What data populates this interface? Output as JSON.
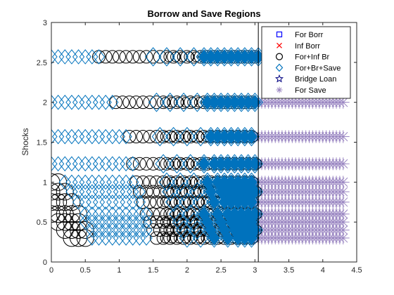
{
  "chart_data": {
    "type": "scatter",
    "title": "Borrow and Save Regions",
    "xlabel": "",
    "ylabel": "Shocks",
    "xlim": [
      0,
      4.5
    ],
    "ylim": [
      0,
      3
    ],
    "xticks": [
      "0",
      "0.5",
      "1",
      "1.5",
      "2",
      "2.5",
      "3",
      "3.5",
      "4",
      "4.5"
    ],
    "yticks": [
      "0",
      "0.5",
      "1",
      "1.5",
      "2",
      "2.5",
      "3"
    ],
    "grid": false,
    "legend_position": "top-right",
    "vertical_line_x": 3.05,
    "series": [
      {
        "name": "For Borr",
        "marker": "square",
        "color": "#0000ff",
        "points": []
      },
      {
        "name": "Inf Borr",
        "marker": "x",
        "color": "#ff0000",
        "points": []
      },
      {
        "name": "For+Inf Br",
        "marker": "circle",
        "color": "#000000",
        "rows": [
          {
            "y": 2.57,
            "x": [
              0.7,
              0.8,
              0.9,
              1.0,
              1.1,
              1.2,
              1.3,
              1.4,
              1.5,
              1.6,
              1.7,
              1.8,
              1.9,
              2.0,
              2.1,
              2.2,
              2.3,
              2.4,
              2.5,
              2.6,
              2.7,
              2.8,
              2.9,
              3.0
            ]
          },
          {
            "y": 2.0,
            "x": [
              0.95,
              1.05,
              1.15,
              1.25,
              1.35,
              1.45,
              1.55,
              1.65,
              1.75,
              1.85,
              1.95,
              2.05,
              2.15,
              2.25,
              2.35,
              2.45,
              2.55,
              2.65,
              2.75,
              2.85,
              2.95
            ]
          },
          {
            "y": 1.57,
            "x": [
              1.15,
              1.25,
              1.35,
              1.45,
              1.55,
              1.65,
              1.75,
              1.85,
              1.95,
              2.05,
              2.15,
              2.25,
              2.35,
              2.45,
              2.55,
              2.65,
              2.75,
              2.85,
              2.95
            ]
          },
          {
            "y": 1.23,
            "x": [
              1.2,
              1.3,
              1.4,
              1.5,
              1.6,
              1.7,
              1.8,
              1.9,
              2.0,
              2.1,
              2.2,
              2.3,
              2.4,
              2.5,
              2.6,
              2.7,
              2.8,
              2.9,
              3.0
            ]
          },
          {
            "y": 1.0,
            "x": [
              0.0,
              0.1,
              1.25,
              1.35,
              1.45,
              1.55,
              1.65,
              1.75,
              1.85,
              1.95,
              2.05,
              2.15,
              2.25,
              2.35,
              2.45,
              2.55,
              2.65,
              2.75,
              2.85,
              2.95
            ]
          },
          {
            "y": 0.88,
            "x": [
              0.0,
              0.1,
              0.2,
              1.3,
              1.4,
              1.5,
              1.6,
              1.7,
              1.8,
              1.9,
              2.0,
              2.1,
              2.2,
              2.3,
              2.4,
              2.5,
              2.6,
              2.7,
              2.8,
              2.9,
              3.0
            ]
          },
          {
            "y": 0.75,
            "x": [
              0.0,
              0.1,
              0.2,
              0.3,
              1.35,
              1.45,
              1.55,
              1.65,
              1.75,
              1.85,
              1.95,
              2.05,
              2.15,
              2.25,
              2.35,
              2.45,
              2.55,
              2.65,
              2.75,
              2.85,
              2.95
            ]
          },
          {
            "y": 0.6,
            "x": [
              0.0,
              0.1,
              0.2,
              0.3,
              0.4,
              1.4,
              1.5,
              1.6,
              1.7,
              1.8,
              1.9,
              2.0,
              2.1,
              2.2,
              2.3,
              2.4,
              2.5,
              2.6,
              2.7,
              2.8,
              2.9,
              3.0
            ]
          },
          {
            "y": 0.5,
            "x": [
              0.1,
              0.2,
              0.3,
              0.4,
              1.45,
              1.55,
              1.65,
              1.75,
              1.85,
              1.95,
              2.05,
              2.15,
              2.25,
              2.35,
              2.45,
              2.55,
              2.65,
              2.75,
              2.85,
              2.95
            ]
          },
          {
            "y": 0.4,
            "x": [
              0.2,
              0.3,
              0.4,
              0.5,
              1.5,
              1.6,
              1.7,
              1.8,
              1.9,
              2.0,
              2.1,
              2.2,
              2.3,
              2.4,
              2.5,
              2.6,
              2.7,
              2.8,
              2.9,
              3.0
            ]
          },
          {
            "y": 0.3,
            "x": [
              0.3,
              0.4,
              0.5,
              1.55,
              1.65,
              1.75,
              1.85,
              1.95,
              2.05,
              2.15,
              2.25,
              2.35,
              2.45,
              2.55,
              2.65,
              2.75,
              2.85,
              2.95
            ]
          }
        ]
      },
      {
        "name": "For+Br+Save",
        "marker": "diamond",
        "color": "#0072bd",
        "rows": [
          {
            "y": 2.57,
            "x": [
              0.0,
              0.1,
              0.2,
              0.3,
              0.4,
              0.5,
              0.6,
              0.7,
              1.5,
              1.7,
              1.9,
              2.1,
              2.25,
              2.35,
              2.45,
              2.55,
              2.65,
              2.75,
              2.85,
              2.95,
              3.05
            ]
          },
          {
            "y": 2.0,
            "x": [
              0.0,
              0.1,
              0.2,
              0.3,
              0.4,
              0.5,
              0.6,
              0.7,
              0.8,
              0.9,
              1.55,
              1.75,
              1.95,
              2.15,
              2.3,
              2.4,
              2.5,
              2.6,
              2.7,
              2.8,
              2.9,
              3.0
            ]
          },
          {
            "y": 1.57,
            "x": [
              0.0,
              0.1,
              0.2,
              0.3,
              0.4,
              0.5,
              0.6,
              0.7,
              0.8,
              0.9,
              1.0,
              1.1,
              1.6,
              1.8,
              2.0,
              2.2,
              2.35,
              2.45,
              2.55,
              2.65,
              2.75,
              2.85,
              2.95
            ]
          },
          {
            "y": 1.23,
            "x": [
              0.0,
              0.1,
              0.2,
              0.3,
              0.4,
              0.5,
              0.6,
              0.7,
              0.8,
              0.9,
              1.0,
              1.1,
              1.2,
              1.65,
              1.85,
              2.05,
              2.25,
              2.4,
              2.5,
              2.6,
              2.7,
              2.8,
              2.9,
              3.0
            ]
          },
          {
            "y": 1.0,
            "x": [
              0.2,
              0.3,
              0.4,
              0.5,
              0.6,
              0.7,
              0.8,
              0.9,
              1.0,
              1.1,
              1.2,
              1.7,
              1.9,
              2.1,
              2.3,
              2.45,
              2.55,
              2.65,
              2.75,
              2.85,
              2.95
            ]
          },
          {
            "y": 0.88,
            "x": [
              0.3,
              0.4,
              0.5,
              0.6,
              0.7,
              0.8,
              0.9,
              1.0,
              1.1,
              1.2,
              1.3,
              1.75,
              1.95,
              2.15,
              2.35,
              2.5,
              2.6,
              2.7,
              2.8,
              2.9,
              3.0
            ]
          },
          {
            "y": 0.75,
            "x": [
              0.4,
              0.5,
              0.6,
              0.7,
              0.8,
              0.9,
              1.0,
              1.1,
              1.2,
              1.3,
              1.8,
              2.0,
              2.2,
              2.4,
              2.55,
              2.65,
              2.75,
              2.85,
              2.95
            ]
          },
          {
            "y": 0.6,
            "x": [
              0.5,
              0.6,
              0.7,
              0.8,
              0.9,
              1.0,
              1.1,
              1.2,
              1.3,
              1.4,
              1.85,
              2.05,
              2.25,
              2.45,
              2.6,
              2.7,
              2.8,
              2.9,
              3.0
            ]
          },
          {
            "y": 0.5,
            "x": [
              0.5,
              0.6,
              0.7,
              0.8,
              0.9,
              1.0,
              1.1,
              1.2,
              1.3,
              1.4,
              1.9,
              2.1,
              2.3,
              2.5,
              2.65,
              2.75,
              2.85,
              2.95
            ]
          },
          {
            "y": 0.4,
            "x": [
              0.6,
              0.7,
              0.8,
              0.9,
              1.0,
              1.1,
              1.2,
              1.3,
              1.4,
              1.95,
              2.15,
              2.35,
              2.55,
              2.7,
              2.8,
              2.9,
              3.0
            ]
          },
          {
            "y": 0.3,
            "x": [
              0.6,
              0.7,
              0.8,
              0.9,
              1.0,
              1.1,
              1.2,
              1.3,
              1.4,
              2.0,
              2.2,
              2.4,
              2.6,
              2.75,
              2.85,
              2.95
            ]
          }
        ]
      },
      {
        "name": "Bridge Loan",
        "marker": "pentagram",
        "color": "#000080",
        "points": []
      },
      {
        "name": "For Save",
        "marker": "asterisk",
        "color": "#9a86c2",
        "rows": [
          {
            "y": 2.57,
            "x_range": [
              3.0,
              4.3
            ]
          },
          {
            "y": 2.0,
            "x_range": [
              3.0,
              4.3
            ]
          },
          {
            "y": 1.57,
            "x_range": [
              3.0,
              4.3
            ]
          },
          {
            "y": 1.23,
            "x_range": [
              3.0,
              4.3
            ]
          },
          {
            "y": 1.0,
            "x_range": [
              3.0,
              4.3
            ]
          },
          {
            "y": 0.88,
            "x_range": [
              3.0,
              4.3
            ]
          },
          {
            "y": 0.75,
            "x_range": [
              3.0,
              4.3
            ]
          },
          {
            "y": 0.6,
            "x_range": [
              3.0,
              4.3
            ]
          },
          {
            "y": 0.5,
            "x_range": [
              3.0,
              4.3
            ]
          },
          {
            "y": 0.4,
            "x_range": [
              3.0,
              4.3
            ]
          },
          {
            "y": 0.3,
            "x_range": [
              3.0,
              4.3
            ]
          }
        ]
      }
    ]
  }
}
